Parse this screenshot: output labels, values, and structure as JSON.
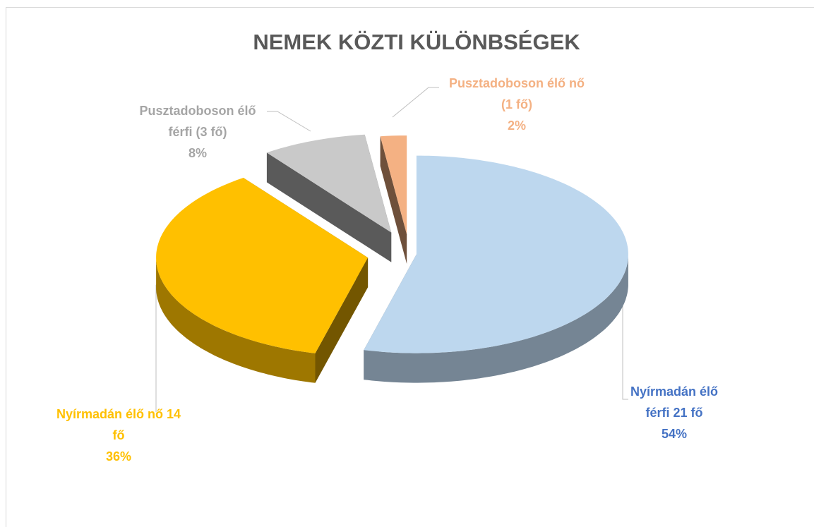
{
  "chart_data": {
    "type": "pie3d",
    "title": "NEMEK KÖZTI KÜLÖNBSÉGEK",
    "categories": [
      "Nyírmadán élő férfi 21 fő",
      "Nyírmadán élő nő 14 fő",
      "Pusztadoboson élő férfi (3 fő)",
      "Pusztadoboson élő nő (1 fő)"
    ],
    "values": [
      54,
      36,
      8,
      2
    ],
    "value_labels": [
      "54%",
      "36%",
      "8%",
      "2%"
    ],
    "colors": [
      "#bdd7ee",
      "#ffc000",
      "#c9c9c9",
      "#f4b183"
    ],
    "label_colors": [
      "#4472c4",
      "#ffc000",
      "#a5a5a5",
      "#f4b183"
    ]
  }
}
